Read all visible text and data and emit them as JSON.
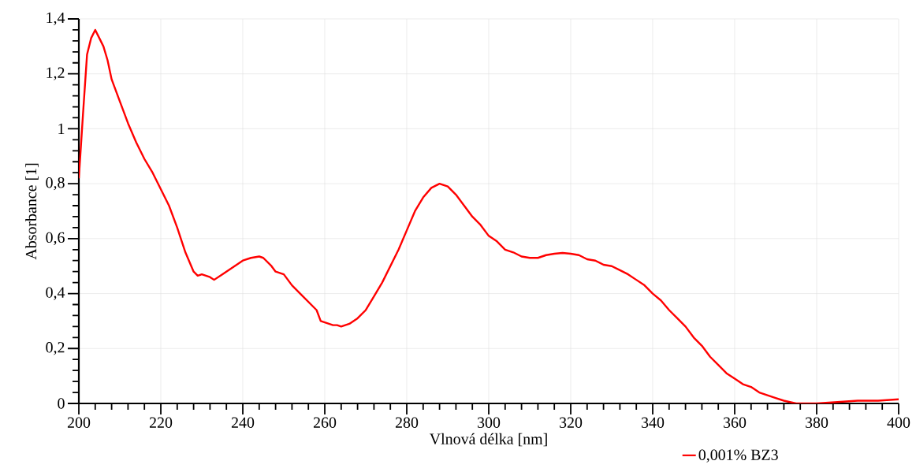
{
  "chart_data": {
    "type": "line",
    "xlabel": "Vlnová délka [nm]",
    "ylabel": "Absorbance [1]",
    "xlim": [
      200,
      400
    ],
    "ylim": [
      0,
      1.4
    ],
    "xticks": [
      200,
      220,
      240,
      260,
      280,
      300,
      320,
      340,
      360,
      380,
      400
    ],
    "yticks": [
      0,
      {
        "value": 0.2,
        "label": "0,2"
      },
      {
        "value": 0.4,
        "label": "0,4"
      },
      {
        "value": 0.6,
        "label": "0,6"
      },
      {
        "value": 0.8,
        "label": "0,8"
      },
      1,
      {
        "value": 1.2,
        "label": "1,2"
      },
      {
        "value": 1.4,
        "label": "1,4"
      }
    ],
    "grid": true,
    "legend": "bottom",
    "marker": "none",
    "line_style": "solid",
    "series": [
      {
        "name": "0,001% BZ3",
        "color": "#ff0000",
        "x": [
          200,
          201,
          202,
          203,
          204,
          205,
          206,
          207,
          208,
          210,
          212,
          214,
          216,
          218,
          220,
          222,
          224,
          226,
          228,
          229,
          230,
          232,
          233,
          235,
          238,
          240,
          242,
          244,
          245,
          247,
          248,
          250,
          252,
          254,
          256,
          258,
          259,
          261,
          262,
          263,
          264,
          266,
          268,
          270,
          272,
          274,
          276,
          278,
          280,
          282,
          284,
          286,
          288,
          290,
          292,
          294,
          296,
          298,
          300,
          302,
          304,
          306,
          308,
          310,
          312,
          314,
          316,
          318,
          320,
          322,
          324,
          326,
          328,
          330,
          332,
          334,
          336,
          338,
          340,
          342,
          344,
          346,
          348,
          350,
          352,
          354,
          356,
          358,
          360,
          362,
          364,
          366,
          368,
          370,
          372,
          375,
          380,
          385,
          390,
          395,
          400
        ],
        "values": [
          0.82,
          1.05,
          1.27,
          1.33,
          1.36,
          1.33,
          1.3,
          1.25,
          1.18,
          1.1,
          1.02,
          0.95,
          0.89,
          0.84,
          0.78,
          0.72,
          0.64,
          0.55,
          0.48,
          0.465,
          0.47,
          0.46,
          0.45,
          0.47,
          0.5,
          0.52,
          0.53,
          0.535,
          0.53,
          0.5,
          0.48,
          0.47,
          0.43,
          0.4,
          0.37,
          0.34,
          0.3,
          0.29,
          0.285,
          0.285,
          0.28,
          0.29,
          0.31,
          0.34,
          0.39,
          0.44,
          0.5,
          0.56,
          0.63,
          0.7,
          0.75,
          0.785,
          0.8,
          0.79,
          0.76,
          0.72,
          0.68,
          0.65,
          0.61,
          0.59,
          0.56,
          0.55,
          0.535,
          0.53,
          0.53,
          0.54,
          0.545,
          0.548,
          0.545,
          0.54,
          0.525,
          0.52,
          0.505,
          0.5,
          0.485,
          0.47,
          0.45,
          0.43,
          0.4,
          0.375,
          0.34,
          0.31,
          0.28,
          0.24,
          0.21,
          0.17,
          0.14,
          0.11,
          0.09,
          0.07,
          0.06,
          0.04,
          0.03,
          0.02,
          0.01,
          0,
          0,
          0.005,
          0.01,
          0.01,
          0.015
        ]
      }
    ]
  }
}
